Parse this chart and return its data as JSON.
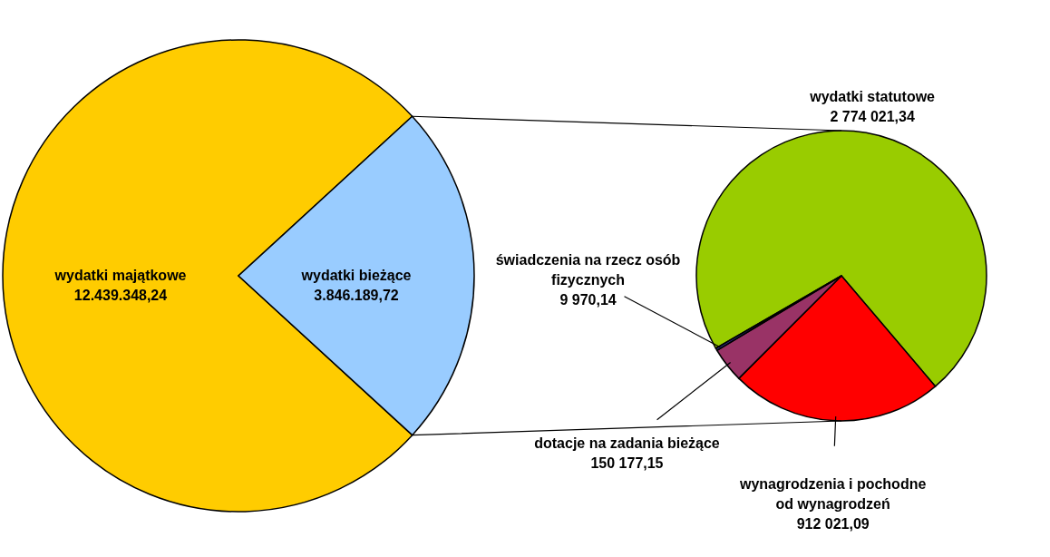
{
  "chart_data": [
    {
      "type": "pie",
      "categories": [
        "wydatki majątkowe",
        "wydatki bieżące"
      ],
      "values": [
        12439348.24,
        3846189.72
      ],
      "value_labels": [
        "12.439.348,24",
        "3.846.189,72"
      ],
      "colors": [
        "#ffcc00",
        "#99ccff"
      ]
    },
    {
      "type": "pie",
      "categories": [
        "wydatki statutowe",
        "wynagrodzenia i pochodne od wynagrodzeń",
        "dotacje na zadania bieżące",
        "świadczenia na rzecz osób fizycznych"
      ],
      "values": [
        2774021.34,
        912021.09,
        150177.15,
        9970.14
      ],
      "value_labels": [
        "2 774 021,34",
        "912 021,09",
        "150 177,15",
        "9 970,14"
      ],
      "colors": [
        "#99cc00",
        "#ff0000",
        "#993366",
        "#333399"
      ]
    }
  ]
}
